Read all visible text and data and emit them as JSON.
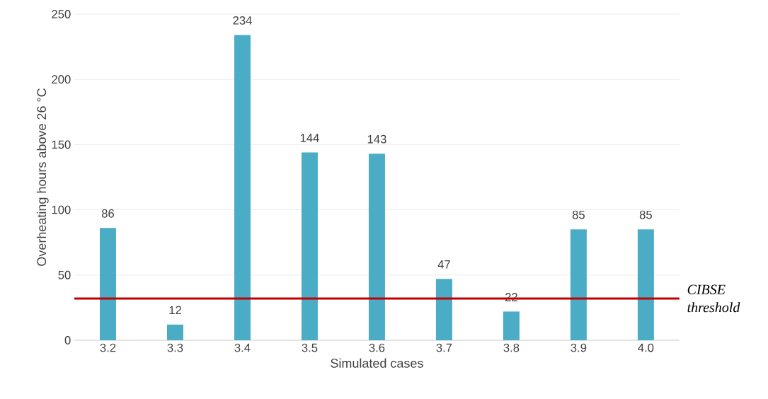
{
  "chart_data": {
    "type": "bar",
    "xlabel": "Simulated cases",
    "ylabel": "Overheating hours above 26 °C",
    "categories": [
      "3.2",
      "3.3",
      "3.4",
      "3.5",
      "3.6",
      "3.7",
      "3.8",
      "3.9",
      "4.0"
    ],
    "values": [
      86,
      12,
      234,
      144,
      143,
      47,
      22,
      85,
      85
    ],
    "color": "#4bacc6",
    "ylim": [
      0,
      250
    ],
    "yticks": [
      0,
      50,
      100,
      150,
      200,
      250
    ],
    "grid": "y",
    "data_labels": true,
    "ref_lines": [
      {
        "axis": "y",
        "value": 32,
        "label": "CIBSE threshold",
        "color": "#c00000"
      }
    ]
  }
}
